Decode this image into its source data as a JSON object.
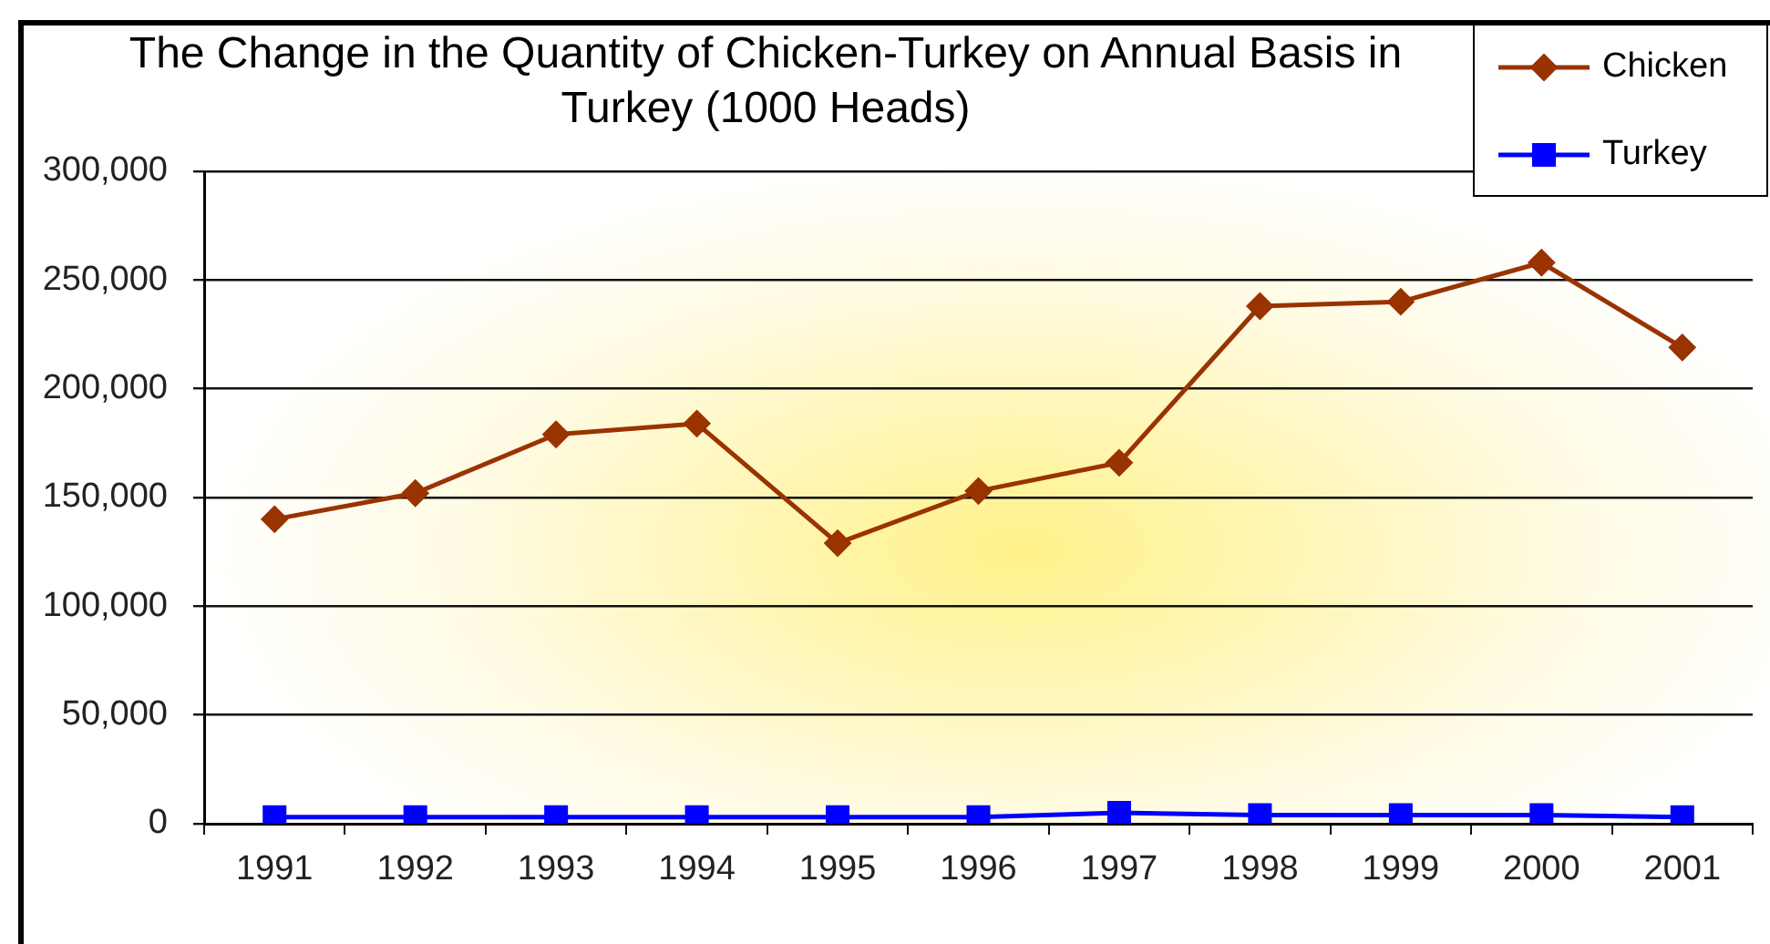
{
  "chart_data": {
    "type": "line",
    "title": "The Change in the Quantity of Chicken-Turkey on Annual Basis in Turkey (1000 Heads)",
    "categories": [
      "1991",
      "1992",
      "1993",
      "1994",
      "1995",
      "1996",
      "1997",
      "1998",
      "1999",
      "2000",
      "2001"
    ],
    "series": [
      {
        "name": "Chicken",
        "color": "#993300",
        "marker": "diamond",
        "values": [
          140000,
          152000,
          179000,
          184000,
          129000,
          153000,
          166000,
          238000,
          240000,
          258000,
          219000
        ]
      },
      {
        "name": "Turkey",
        "color": "#0000ff",
        "marker": "square",
        "values": [
          3000,
          3000,
          3000,
          3000,
          3000,
          3000,
          5000,
          4000,
          4000,
          4000,
          3000
        ]
      }
    ],
    "ylim": [
      0,
      300000
    ],
    "yticks": [
      {
        "value": 0,
        "label": "0"
      },
      {
        "value": 50000,
        "label": "50,000"
      },
      {
        "value": 100000,
        "label": "100,000"
      },
      {
        "value": 150000,
        "label": "150,000"
      },
      {
        "value": 200000,
        "label": "200,000"
      },
      {
        "value": 250000,
        "label": "250,000"
      },
      {
        "value": 300000,
        "label": "300,000"
      }
    ],
    "grid": "y",
    "legend": "top right",
    "line_style": "solid"
  }
}
